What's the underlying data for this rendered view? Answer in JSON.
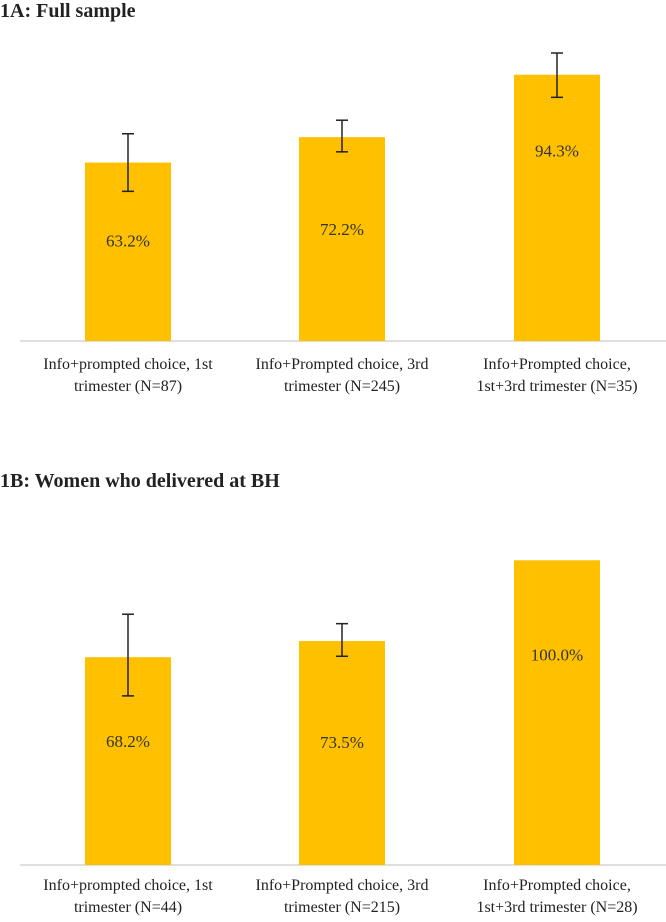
{
  "colors": {
    "bar": "#FFC000",
    "axis": "#BFBFBF",
    "error": "#222222",
    "label": "#333333"
  },
  "chart_data": [
    {
      "type": "bar",
      "title": "1A: Full sample",
      "categories": [
        [
          "Info+prompted choice, 1st",
          "trimester (N=87)"
        ],
        [
          "Info+Prompted choice, 3rd",
          "trimester (N=245)"
        ],
        [
          "Info+Prompted choice,",
          "1st+3rd trimester (N=35)"
        ]
      ],
      "values": [
        63.2,
        72.2,
        94.3
      ],
      "data_labels": [
        "63.2%",
        "72.2%",
        "94.3%"
      ],
      "error_low": [
        53.0,
        67.0,
        86.3
      ],
      "error_high": [
        73.4,
        78.2,
        102.0
      ],
      "ylim": [
        0,
        102
      ],
      "legend": "none",
      "grid": false
    },
    {
      "type": "bar",
      "title": "1B: Women who delivered at BH",
      "categories": [
        [
          "Info+prompted choice, 1st",
          "trimester (N=44)"
        ],
        [
          "Info+Prompted choice, 3rd",
          "trimester (N=215)"
        ],
        [
          "Info+Prompted choice,",
          "1st+3rd trimester (N=28)"
        ]
      ],
      "values": [
        68.2,
        73.5,
        100.0
      ],
      "data_labels": [
        "68.2%",
        "73.5%",
        "100.0%"
      ],
      "error_low": [
        55.5,
        68.5,
        100.0
      ],
      "error_high": [
        82.3,
        79.2,
        100.0
      ],
      "ylim": [
        0,
        106
      ],
      "legend": "none",
      "grid": false
    }
  ]
}
